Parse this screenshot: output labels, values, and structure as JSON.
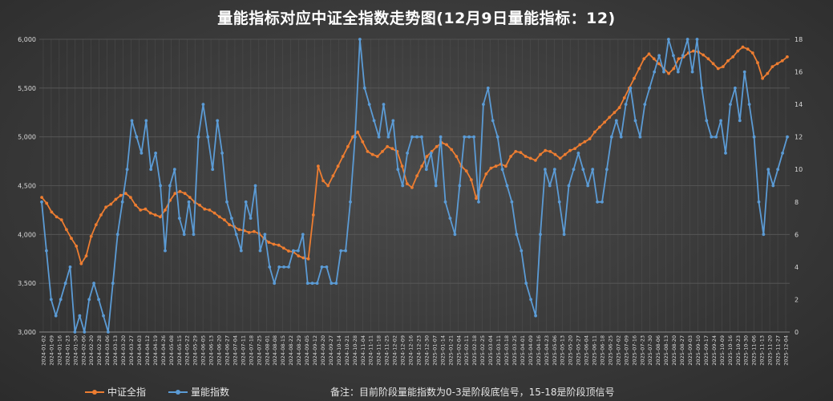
{
  "title": "量能指标对应中证全指数走势图(12月9日量能指标：12)",
  "note": "备注：目前阶段量能指数为0-3是阶段底信号，15-18是阶段顶信号",
  "colors": {
    "orange": "#ED7D31",
    "blue": "#5B9BD5",
    "grid": "#5a5a5a",
    "text": "#d9d9d9"
  },
  "chart_data": {
    "type": "line",
    "title": "量能指标对应中证全指数走势图(12月9日量能指标：12)",
    "legend_position": "bottom-left",
    "grid": true,
    "y_left": {
      "min": 3000,
      "max": 6000,
      "step": 500,
      "ticks": [
        "3,000",
        "3,500",
        "4,000",
        "4,500",
        "5,000",
        "5,500",
        "6,000"
      ]
    },
    "y_right": {
      "min": 0,
      "max": 18,
      "step": 2,
      "ticks": [
        "0",
        "2",
        "4",
        "6",
        "8",
        "10",
        "12",
        "14",
        "16",
        "18"
      ]
    },
    "x_tick_labels": [
      "2024-01-02",
      "2024-01-09",
      "2024-01-16",
      "2024-01-23",
      "2024-01-30",
      "2024-02-06",
      "2024-02-20",
      "2024-02-28",
      "2024-03-06",
      "2024-03-13",
      "2024-03-20",
      "2024-03-27",
      "2024-04-03",
      "2024-04-12",
      "2024-04-19",
      "2024-04-26",
      "2024-05-08",
      "2024-05-15",
      "2024-05-22",
      "2024-05-29",
      "2024-06-05",
      "2024-06-13",
      "2024-06-20",
      "2024-06-27",
      "2024-07-04",
      "2024-07-11",
      "2024-07-18",
      "2024-07-25",
      "2024-08-01",
      "2024-08-08",
      "2024-08-15",
      "2024-08-22",
      "2024-08-29",
      "2024-09-05",
      "2024-09-12",
      "2024-09-20",
      "2024-09-27",
      "2024-10-14",
      "2024-10-21",
      "2024-10-28",
      "2024-11-04",
      "2024-11-11",
      "2024-11-18",
      "2024-11-25",
      "2024-12-02",
      "2024-12-09",
      "2024-12-16",
      "2024-12-23",
      "2024-12-30",
      "2025-01-07",
      "2025-01-14",
      "2025-01-21",
      "2025-02-04",
      "2025-02-11",
      "2025-02-18",
      "2025-02-25",
      "2025-03-04",
      "2025-03-11",
      "2025-03-18",
      "2025-03-25",
      "2025-04-01",
      "2025-04-09",
      "2025-04-16",
      "2025-04-23",
      "2025-05-06",
      "2025-05-13",
      "2025-05-20",
      "2025-05-27",
      "2025-06-04",
      "2025-06-11",
      "2025-06-18",
      "2025-06-25",
      "2025-07-02",
      "2025-07-09",
      "2025-07-16",
      "2025-07-23",
      "2025-07-30",
      "2025-08-06",
      "2025-08-13",
      "2025-08-20",
      "2025-08-27",
      "2025-09-03",
      "2025-09-10",
      "2025-09-17",
      "2025-09-24",
      "2025-10-09",
      "2025-10-16",
      "2025-10-23",
      "2025-10-30",
      "2025-11-06",
      "2025-11-13",
      "2025-11-20",
      "2025-11-27",
      "2025-12-04"
    ],
    "series": [
      {
        "name": "中证全指",
        "axis": "left",
        "color": "#ED7D31",
        "values": [
          4380,
          4320,
          4230,
          4180,
          4150,
          4050,
          3960,
          3880,
          3700,
          3780,
          3980,
          4100,
          4200,
          4280,
          4310,
          4360,
          4400,
          4420,
          4380,
          4300,
          4250,
          4260,
          4220,
          4200,
          4180,
          4250,
          4350,
          4420,
          4440,
          4420,
          4380,
          4330,
          4300,
          4260,
          4250,
          4220,
          4180,
          4150,
          4100,
          4080,
          4050,
          4040,
          4020,
          4030,
          4010,
          3960,
          3920,
          3900,
          3890,
          3860,
          3830,
          3820,
          3780,
          3760,
          3750,
          4200,
          4700,
          4550,
          4500,
          4600,
          4700,
          4800,
          4900,
          5000,
          5050,
          4950,
          4850,
          4820,
          4800,
          4850,
          4900,
          4880,
          4850,
          4700,
          4520,
          4480,
          4600,
          4700,
          4800,
          4850,
          4900,
          4940,
          4920,
          4870,
          4800,
          4700,
          4650,
          4560,
          4370,
          4500,
          4620,
          4680,
          4700,
          4720,
          4700,
          4800,
          4850,
          4840,
          4800,
          4780,
          4760,
          4820,
          4860,
          4850,
          4820,
          4780,
          4820,
          4860,
          4880,
          4920,
          4950,
          4980,
          5050,
          5100,
          5150,
          5200,
          5250,
          5300,
          5400,
          5500,
          5600,
          5700,
          5800,
          5850,
          5800,
          5750,
          5700,
          5650,
          5700,
          5800,
          5820,
          5860,
          5880,
          5870,
          5840,
          5800,
          5750,
          5700,
          5720,
          5780,
          5820,
          5880,
          5920,
          5900,
          5860,
          5760,
          5600,
          5650,
          5720,
          5750,
          5780,
          5820
        ]
      },
      {
        "name": "量能指数",
        "axis": "right",
        "color": "#5B9BD5",
        "values": [
          8,
          5,
          2,
          1,
          2,
          3,
          4,
          0,
          1,
          0,
          2,
          3,
          2,
          1,
          0,
          3,
          6,
          8,
          10,
          13,
          12,
          11,
          13,
          10,
          11,
          9,
          5,
          9,
          10,
          7,
          6,
          8,
          6,
          12,
          14,
          12,
          10,
          13,
          11,
          8,
          7,
          6,
          5,
          8,
          7,
          9,
          5,
          6,
          4,
          3,
          4,
          4,
          4,
          5,
          5,
          6,
          3,
          3,
          3,
          4,
          4,
          3,
          3,
          5,
          5,
          8,
          12,
          18,
          15,
          14,
          13,
          12,
          14,
          12,
          13,
          10,
          9,
          11,
          12,
          12,
          12,
          10,
          11,
          9,
          12,
          8,
          7,
          6,
          9,
          12,
          12,
          12,
          8,
          14,
          15,
          13,
          12,
          10,
          9,
          8,
          6,
          5,
          3,
          2,
          1,
          6,
          10,
          9,
          10,
          8,
          6,
          9,
          10,
          11,
          10,
          9,
          10,
          8,
          8,
          10,
          12,
          13,
          12,
          14,
          15,
          13,
          12,
          14,
          15,
          16,
          17,
          16,
          18,
          17,
          16,
          17,
          18,
          16,
          18,
          15,
          13,
          12,
          12,
          13,
          11,
          14,
          15,
          13,
          16,
          14,
          12,
          8,
          6,
          10,
          9,
          10,
          11,
          12
        ]
      }
    ]
  }
}
